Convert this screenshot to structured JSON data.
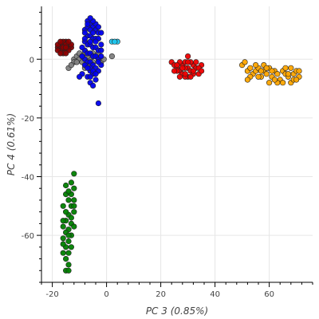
{
  "chart_data": {
    "type": "scatter",
    "title": "",
    "xlabel": "PC 3 (0.85%)",
    "ylabel": "PC 4 (0.61%)",
    "xlim": [
      -24,
      76
    ],
    "ylim": [
      -76,
      18
    ],
    "xticks": [
      -20,
      0,
      20,
      40,
      60
    ],
    "yticks": [
      0,
      -20,
      -40,
      -60
    ],
    "xtick_labels": [
      "-20",
      "0",
      "20",
      "40",
      "60"
    ],
    "ytick_labels": [
      "0",
      "-20",
      "-40",
      "-60"
    ],
    "grid": true,
    "legend": "none",
    "colors": {
      "maroon": "#8b0000",
      "grey": "#808080",
      "blue": "#0000ee",
      "lightblue": "#1ec8f0",
      "red": "#ee0000",
      "orange": "#ffa500",
      "green": "#007f00",
      "outline": "#222222",
      "grid": "#e6e6e6",
      "axis": "#000000"
    },
    "series": [
      {
        "color": "maroon",
        "points": [
          [
            -18,
            4
          ],
          [
            -17,
            5
          ],
          [
            -16,
            3
          ],
          [
            -15,
            6
          ],
          [
            -14,
            4
          ],
          [
            -17,
            4
          ],
          [
            -18,
            5
          ],
          [
            -16,
            5
          ],
          [
            -15,
            3
          ],
          [
            -14,
            5
          ],
          [
            -16,
            6
          ],
          [
            -17,
            3
          ],
          [
            -15,
            5
          ],
          [
            -16,
            4
          ],
          [
            -13,
            4
          ],
          [
            -14,
            3
          ],
          [
            -15,
            4
          ],
          [
            -17,
            6
          ],
          [
            -16,
            2
          ],
          [
            -18,
            3
          ],
          [
            -13,
            5
          ],
          [
            -14,
            6
          ],
          [
            -17,
            2
          ],
          [
            -15,
            2
          ]
        ]
      },
      {
        "color": "grey",
        "points": [
          [
            -14,
            -3
          ],
          [
            -12,
            0
          ],
          [
            -11,
            1
          ],
          [
            -10,
            0
          ],
          [
            -9,
            -1
          ],
          [
            -8,
            2
          ],
          [
            -7,
            -2
          ],
          [
            -6,
            0
          ],
          [
            -5,
            -1
          ],
          [
            -4,
            1
          ],
          [
            -3,
            0
          ],
          [
            -2,
            -1
          ],
          [
            -1,
            0
          ],
          [
            2,
            1
          ],
          [
            -12,
            -1
          ],
          [
            -10,
            2
          ],
          [
            -7,
            1
          ],
          [
            -5,
            2
          ],
          [
            -8,
            -3
          ],
          [
            -3,
            2
          ],
          [
            -13,
            -2
          ],
          [
            -9,
            1
          ],
          [
            -6,
            -2
          ],
          [
            -11,
            -1
          ]
        ]
      },
      {
        "color": "blue",
        "points": [
          [
            -7,
            13
          ],
          [
            -6,
            12
          ],
          [
            -8,
            10
          ],
          [
            -5,
            11
          ],
          [
            -4,
            10
          ],
          [
            -3,
            9
          ],
          [
            -7,
            8
          ],
          [
            -6,
            8
          ],
          [
            -5,
            7
          ],
          [
            -4,
            7
          ],
          [
            -8,
            6
          ],
          [
            -7,
            5
          ],
          [
            -6,
            5
          ],
          [
            -5,
            4
          ],
          [
            -4,
            4
          ],
          [
            -3,
            3
          ],
          [
            -8,
            3
          ],
          [
            -7,
            2
          ],
          [
            -6,
            2
          ],
          [
            -5,
            1
          ],
          [
            -4,
            1
          ],
          [
            -3,
            0
          ],
          [
            -8,
            0
          ],
          [
            -7,
            -1
          ],
          [
            -6,
            -1
          ],
          [
            -5,
            -2
          ],
          [
            -4,
            -3
          ],
          [
            -6,
            -4
          ],
          [
            -5,
            -5
          ],
          [
            -7,
            -6
          ],
          [
            -4,
            -7
          ],
          [
            -6,
            -8
          ],
          [
            -5,
            -9
          ],
          [
            -3,
            -15
          ],
          [
            -9,
            -5
          ],
          [
            -10,
            -6
          ],
          [
            -2,
            -2
          ],
          [
            -8,
            -2
          ],
          [
            -6,
            -3
          ],
          [
            -3,
            -4
          ],
          [
            -2,
            1
          ],
          [
            -2,
            5
          ],
          [
            -3,
            7
          ],
          [
            -4,
            12
          ],
          [
            -2,
            9
          ],
          [
            -7,
            11
          ],
          [
            -8,
            7
          ],
          [
            -9,
            4
          ],
          [
            -9,
            1
          ],
          [
            -7,
            -3
          ],
          [
            -5,
            -4
          ],
          [
            -6,
            6
          ],
          [
            -4,
            6
          ],
          [
            -6,
            10
          ],
          [
            -5,
            9
          ],
          [
            -7,
            12
          ],
          [
            -3,
            11
          ],
          [
            -6,
            -6
          ],
          [
            -4,
            -5
          ],
          [
            -8,
            9
          ],
          [
            -5,
            13
          ],
          [
            -6,
            14
          ],
          [
            -2,
            3
          ],
          [
            -3,
            -1
          ]
        ]
      },
      {
        "color": "lightblue",
        "points": [
          [
            2,
            6
          ],
          [
            4,
            6
          ],
          [
            3,
            6
          ]
        ]
      },
      {
        "color": "red",
        "points": [
          [
            24,
            -1
          ],
          [
            25,
            -2
          ],
          [
            26,
            -3
          ],
          [
            27,
            -4
          ],
          [
            28,
            -2
          ],
          [
            29,
            -1
          ],
          [
            30,
            -3
          ],
          [
            31,
            -4
          ],
          [
            32,
            -2
          ],
          [
            33,
            -3
          ],
          [
            34,
            -5
          ],
          [
            35,
            -2
          ],
          [
            26,
            -4
          ],
          [
            28,
            -5
          ],
          [
            30,
            -6
          ],
          [
            32,
            -5
          ],
          [
            27,
            -1
          ],
          [
            29,
            -3
          ],
          [
            31,
            -1
          ],
          [
            33,
            -1
          ],
          [
            25,
            -4
          ],
          [
            28,
            -3
          ],
          [
            30,
            -1
          ],
          [
            34,
            -3
          ],
          [
            29,
            -6
          ],
          [
            31,
            -6
          ],
          [
            27,
            -6
          ],
          [
            30,
            1
          ],
          [
            32,
            -4
          ],
          [
            35,
            -4
          ],
          [
            29,
            -5
          ],
          [
            26,
            -2
          ]
        ]
      },
      {
        "color": "orange",
        "points": [
          [
            50,
            -2
          ],
          [
            52,
            -4
          ],
          [
            53,
            -3
          ],
          [
            54,
            -5
          ],
          [
            55,
            -4
          ],
          [
            56,
            -3
          ],
          [
            57,
            -6
          ],
          [
            58,
            -4
          ],
          [
            59,
            -5
          ],
          [
            60,
            -3
          ],
          [
            61,
            -6
          ],
          [
            62,
            -4
          ],
          [
            63,
            -5
          ],
          [
            64,
            -7
          ],
          [
            65,
            -4
          ],
          [
            66,
            -5
          ],
          [
            67,
            -6
          ],
          [
            68,
            -8
          ],
          [
            69,
            -5
          ],
          [
            70,
            -4
          ],
          [
            71,
            -6
          ],
          [
            51,
            -1
          ],
          [
            53,
            -6
          ],
          [
            56,
            -6
          ],
          [
            60,
            -8
          ],
          [
            63,
            -8
          ],
          [
            66,
            -3
          ],
          [
            69,
            -7
          ],
          [
            71,
            -4
          ],
          [
            55,
            -2
          ],
          [
            58,
            -2
          ],
          [
            61,
            -4
          ],
          [
            65,
            -8
          ],
          [
            68,
            -3
          ],
          [
            52,
            -7
          ],
          [
            57,
            -4
          ],
          [
            62,
            -7
          ],
          [
            67,
            -5
          ],
          [
            70,
            -7
          ],
          [
            59,
            -3
          ]
        ]
      },
      {
        "color": "green",
        "points": [
          [
            -12,
            -39
          ],
          [
            -13,
            -42
          ],
          [
            -12,
            -44
          ],
          [
            -15,
            -46
          ],
          [
            -14,
            -48
          ],
          [
            -13,
            -50
          ],
          [
            -12,
            -52
          ],
          [
            -14,
            -53
          ],
          [
            -15,
            -55
          ],
          [
            -13,
            -56
          ],
          [
            -14,
            -58
          ],
          [
            -15,
            -59
          ],
          [
            -16,
            -61
          ],
          [
            -14,
            -62
          ],
          [
            -15,
            -64
          ],
          [
            -14,
            -66
          ],
          [
            -15,
            -68
          ],
          [
            -14,
            -70
          ],
          [
            -15,
            -72
          ],
          [
            -14,
            -72
          ],
          [
            -16,
            -50
          ],
          [
            -15,
            -52
          ],
          [
            -13,
            -54
          ],
          [
            -16,
            -57
          ],
          [
            -13,
            -60
          ],
          [
            -16,
            -63
          ],
          [
            -13,
            -64
          ],
          [
            -12,
            -48
          ],
          [
            -13,
            -46
          ],
          [
            -15,
            -43
          ],
          [
            -14,
            -45
          ],
          [
            -16,
            -55
          ],
          [
            -12,
            -57
          ],
          [
            -16,
            -66
          ],
          [
            -14,
            -60
          ],
          [
            -12,
            -50
          ]
        ]
      }
    ]
  }
}
